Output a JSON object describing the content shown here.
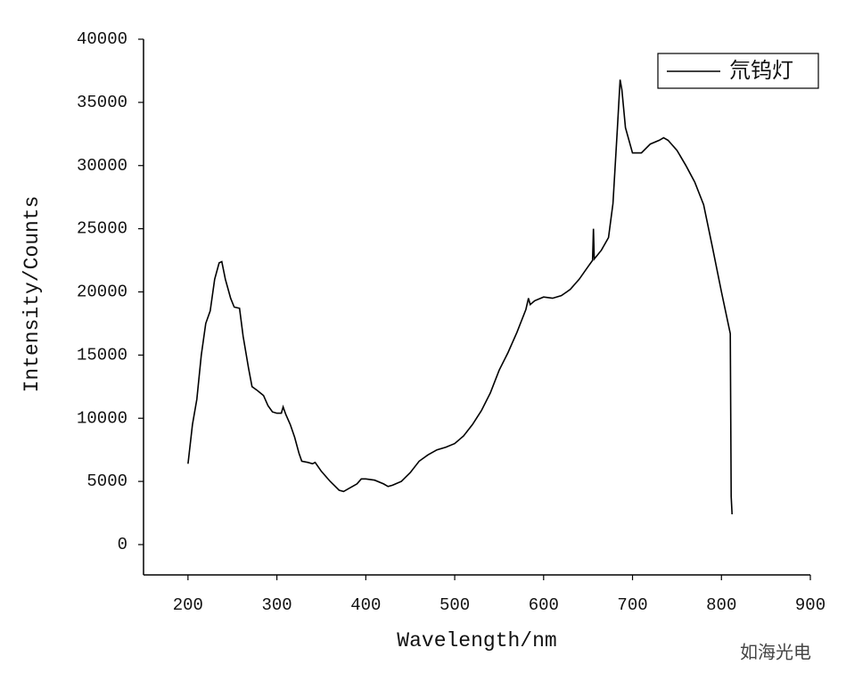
{
  "chart_data": {
    "type": "line",
    "x_label": "Wavelength/nm",
    "y_label": "Intensity/Counts",
    "watermark": "如海光电",
    "legend": "upper right",
    "xlim": [
      150,
      900
    ],
    "ylim": [
      -2400,
      40000
    ],
    "xticks": [
      200,
      300,
      400,
      500,
      600,
      700,
      800,
      900
    ],
    "yticks": [
      0,
      5000,
      10000,
      15000,
      20000,
      25000,
      30000,
      35000,
      40000
    ],
    "x": [
      200,
      205,
      210,
      215,
      220,
      225,
      230,
      235,
      238,
      242,
      248,
      252,
      258,
      262,
      268,
      272,
      278,
      285,
      290,
      295,
      300,
      305,
      307,
      310,
      315,
      320,
      325,
      328,
      335,
      340,
      343,
      350,
      360,
      370,
      375,
      380,
      390,
      395,
      400,
      410,
      420,
      425,
      430,
      440,
      450,
      460,
      470,
      480,
      490,
      500,
      510,
      520,
      530,
      540,
      550,
      560,
      570,
      580,
      583,
      585,
      590,
      600,
      610,
      620,
      630,
      640,
      650,
      655,
      656,
      657,
      665,
      673,
      678,
      683,
      686,
      688,
      692,
      700,
      710,
      720,
      730,
      735,
      740,
      750,
      760,
      770,
      780,
      790,
      800,
      810,
      811,
      812
    ],
    "series": [
      {
        "name": "氘钨灯",
        "color": "#000000",
        "values": [
          6400,
          9500,
          11500,
          15000,
          17500,
          18500,
          21000,
          22300,
          22400,
          21000,
          19500,
          18800,
          18700,
          16500,
          14000,
          12500,
          12200,
          11800,
          11000,
          10500,
          10400,
          10400,
          10900,
          10300,
          9500,
          8500,
          7200,
          6600,
          6500,
          6400,
          6500,
          5800,
          5000,
          4300,
          4200,
          4400,
          4800,
          5200,
          5200,
          5100,
          4800,
          4600,
          4700,
          5000,
          5700,
          6600,
          7100,
          7500,
          7700,
          8000,
          8600,
          9500,
          10600,
          12000,
          13800,
          15200,
          16800,
          18600,
          19500,
          19000,
          19300,
          19600,
          19500,
          19700,
          20200,
          21000,
          22000,
          22500,
          25000,
          22600,
          23300,
          24300,
          27000,
          33000,
          36800,
          36000,
          33000,
          31000,
          31000,
          31700,
          32000,
          32200,
          32000,
          31200,
          30000,
          28700,
          26900,
          23500,
          20000,
          16700,
          3800,
          2400
        ]
      }
    ]
  }
}
